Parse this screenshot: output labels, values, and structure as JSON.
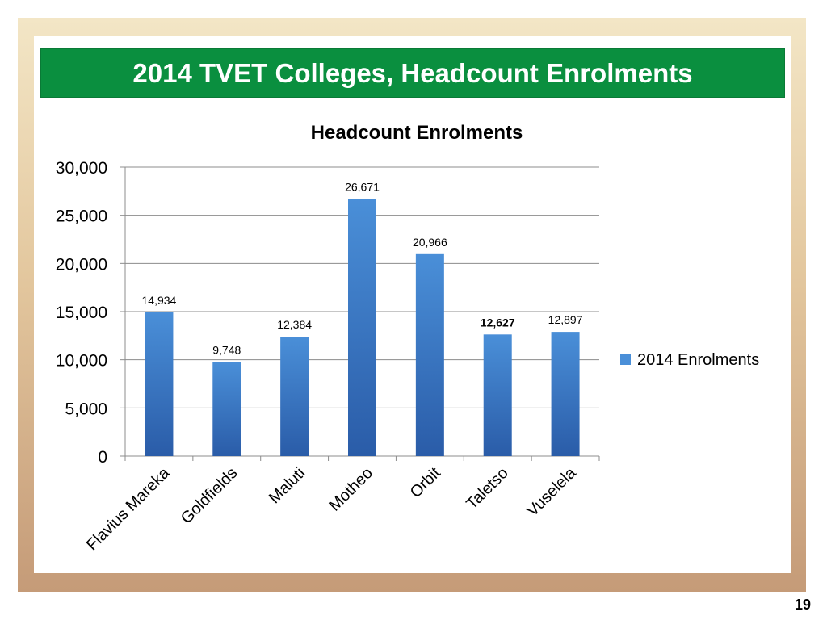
{
  "slide": {
    "title": "2014 TVET Colleges, Headcount Enrolments",
    "page_number": "19"
  },
  "colors": {
    "title_bg": "#0a8f3f",
    "bar_top": "#4a8fd8",
    "bar_bottom": "#2a5ca8"
  },
  "chart_data": {
    "type": "bar",
    "title": "Headcount Enrolments",
    "categories": [
      "Flavius Mareka",
      "Goldfields",
      "Maluti",
      "Motheo",
      "Orbit",
      "Taletso",
      "Vuselela"
    ],
    "series": [
      {
        "name": "2014 Enrolments",
        "values": [
          14934,
          9748,
          12384,
          26671,
          20966,
          12627,
          12897
        ],
        "data_labels": [
          "14,934",
          "9,748",
          "12,384",
          "26,671",
          "20,966",
          "12,627",
          "12,897"
        ]
      }
    ],
    "bold_labels": [
      5
    ],
    "ylim": [
      0,
      30000
    ],
    "yticks": [
      0,
      5000,
      10000,
      15000,
      20000,
      25000,
      30000
    ],
    "ytick_labels": [
      "0",
      "5,000",
      "10,000",
      "15,000",
      "20,000",
      "25,000",
      "30,000"
    ],
    "grid": true,
    "legend": "right"
  }
}
